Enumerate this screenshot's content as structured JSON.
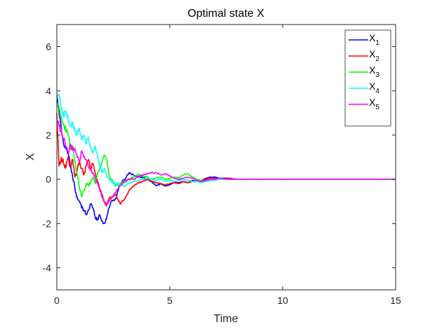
{
  "chart_data": {
    "type": "line",
    "title": "Optimal state X",
    "xlabel": "Time",
    "ylabel": "X",
    "xlim": [
      0,
      15
    ],
    "ylim": [
      -5,
      7
    ],
    "xticks": [
      0,
      5,
      10,
      15
    ],
    "yticks": [
      -4,
      -2,
      0,
      2,
      4,
      6
    ],
    "grid": false,
    "legend_position": "top-right",
    "series": [
      {
        "name": "X1",
        "legend_base": "X",
        "legend_sub": "1",
        "color": "#0000ff",
        "x": [
          0,
          0.1,
          0.2,
          0.3,
          0.4,
          0.5,
          0.6,
          0.7,
          0.8,
          0.9,
          1.0,
          1.1,
          1.2,
          1.3,
          1.4,
          1.5,
          1.6,
          1.7,
          1.8,
          1.9,
          2.0,
          2.1,
          2.2,
          2.3,
          2.4,
          2.6,
          2.8,
          3.0,
          3.2,
          3.4,
          3.6,
          3.8,
          4.0,
          4.2,
          4.4,
          4.6,
          4.8,
          5.0,
          5.2,
          5.4,
          5.6,
          5.8,
          6.0,
          6.2,
          6.4,
          6.6,
          6.8,
          7.0,
          7.2,
          7.6,
          8.0,
          8.5,
          9.0,
          10,
          12,
          15
        ],
        "y": [
          3.8,
          3.0,
          2.3,
          1.6,
          1.4,
          1.2,
          0.6,
          0.1,
          -0.4,
          -0.8,
          -1.0,
          -1.3,
          -1.4,
          -1.6,
          -1.4,
          -1.1,
          -1.3,
          -1.7,
          -1.8,
          -1.6,
          -1.9,
          -2.0,
          -1.8,
          -1.3,
          -1.0,
          -0.9,
          -0.2,
          0.0,
          0.3,
          0.2,
          0.1,
          0.1,
          0.0,
          -0.1,
          -0.3,
          -0.2,
          -0.3,
          -0.25,
          -0.15,
          -0.15,
          -0.1,
          -0.15,
          -0.05,
          -0.1,
          -0.05,
          0.05,
          0.1,
          0.1,
          0.05,
          0.05,
          0.0,
          0.0,
          0.0,
          0.0,
          0.0,
          0.0
        ]
      },
      {
        "name": "X2",
        "legend_base": "X",
        "legend_sub": "2",
        "color": "#ff0000",
        "x": [
          0,
          0.1,
          0.2,
          0.3,
          0.4,
          0.5,
          0.6,
          0.7,
          0.8,
          0.9,
          1.0,
          1.1,
          1.2,
          1.3,
          1.4,
          1.5,
          1.6,
          1.7,
          1.8,
          1.9,
          2.0,
          2.1,
          2.2,
          2.3,
          2.4,
          2.6,
          2.8,
          3.0,
          3.2,
          3.4,
          3.6,
          3.8,
          4.0,
          4.2,
          4.4,
          4.6,
          4.8,
          5.0,
          5.2,
          5.4,
          5.6,
          5.8,
          6.0,
          6.2,
          6.4,
          6.6,
          6.8,
          7.0,
          7.2,
          7.6,
          8.0,
          8.5,
          9.0,
          10,
          12,
          15
        ],
        "y": [
          3.0,
          0.6,
          1.0,
          0.7,
          0.5,
          1.0,
          0.6,
          0.9,
          0.1,
          0.4,
          0.8,
          0.5,
          0.2,
          0.6,
          0.9,
          0.5,
          0.7,
          0.3,
          -0.1,
          -0.4,
          -0.7,
          -1.0,
          -1.2,
          -0.9,
          -0.8,
          -0.7,
          -1.1,
          -0.9,
          -0.5,
          -0.3,
          -0.15,
          -0.1,
          0.0,
          -0.1,
          -0.15,
          -0.2,
          -0.25,
          -0.2,
          -0.15,
          -0.2,
          -0.1,
          -0.15,
          -0.1,
          -0.1,
          -0.05,
          0.0,
          0.05,
          0.05,
          0.0,
          0.05,
          0.0,
          0.0,
          0.0,
          0.0,
          0.0,
          0.0
        ]
      },
      {
        "name": "X3",
        "legend_base": "X",
        "legend_sub": "3",
        "color": "#00ff00",
        "x": [
          0,
          0.1,
          0.2,
          0.3,
          0.4,
          0.5,
          0.6,
          0.7,
          0.8,
          0.9,
          1.0,
          1.1,
          1.2,
          1.3,
          1.4,
          1.5,
          1.6,
          1.7,
          1.8,
          1.9,
          2.0,
          2.1,
          2.2,
          2.3,
          2.4,
          2.6,
          2.8,
          3.0,
          3.2,
          3.4,
          3.6,
          3.8,
          4.0,
          4.2,
          4.4,
          4.6,
          4.8,
          5.0,
          5.2,
          5.4,
          5.6,
          5.8,
          6.0,
          6.2,
          6.4,
          6.6,
          6.8,
          7.0,
          7.2,
          7.6,
          8.0,
          8.5,
          9.0,
          10,
          12,
          15
        ],
        "y": [
          3.5,
          3.2,
          2.8,
          2.5,
          2.2,
          2.0,
          1.4,
          1.5,
          0.8,
          0.2,
          -0.4,
          -0.8,
          -0.5,
          -0.2,
          -0.3,
          -0.1,
          0.1,
          -0.2,
          0.3,
          0.5,
          0.8,
          1.1,
          0.9,
          0.3,
          0.0,
          -0.3,
          -0.2,
          -0.1,
          0.0,
          0.1,
          0.2,
          0.15,
          0.1,
          0.0,
          0.05,
          0.1,
          0.0,
          0.05,
          0.1,
          0.05,
          0.2,
          0.25,
          0.1,
          0.0,
          -0.05,
          -0.1,
          -0.05,
          0.0,
          0.0,
          0.0,
          0.0,
          0.0,
          0.0,
          0.0,
          0.0,
          0.0
        ]
      },
      {
        "name": "X4",
        "legend_base": "X",
        "legend_sub": "4",
        "color": "#00ffff",
        "x": [
          0,
          0.1,
          0.2,
          0.3,
          0.4,
          0.5,
          0.6,
          0.7,
          0.8,
          0.9,
          1.0,
          1.1,
          1.2,
          1.3,
          1.4,
          1.5,
          1.6,
          1.7,
          1.8,
          1.9,
          2.0,
          2.1,
          2.2,
          2.3,
          2.4,
          2.6,
          2.8,
          3.0,
          3.2,
          3.4,
          3.6,
          3.8,
          4.0,
          4.2,
          4.4,
          4.6,
          4.8,
          5.0,
          5.2,
          5.4,
          5.6,
          5.8,
          6.0,
          6.2,
          6.4,
          6.6,
          6.8,
          7.0,
          7.2,
          7.6,
          8.0,
          8.5,
          9.0,
          10,
          12,
          15
        ],
        "y": [
          3.6,
          3.8,
          3.2,
          2.9,
          3.1,
          2.7,
          2.4,
          2.6,
          2.2,
          2.0,
          2.3,
          1.8,
          2.0,
          1.6,
          1.9,
          1.4,
          1.2,
          1.5,
          1.1,
          0.6,
          0.3,
          0.5,
          0.2,
          0.0,
          -0.1,
          -0.2,
          -0.25,
          -0.3,
          -0.2,
          -0.1,
          -0.05,
          0.0,
          0.05,
          0.0,
          -0.05,
          0.0,
          -0.1,
          -0.05,
          -0.1,
          -0.05,
          0.0,
          -0.05,
          -0.1,
          -0.1,
          -0.15,
          -0.1,
          -0.05,
          -0.05,
          0.0,
          0.0,
          0.0,
          0.0,
          0.0,
          0.0,
          0.0,
          0.0
        ]
      },
      {
        "name": "X5",
        "legend_base": "X",
        "legend_sub": "5",
        "color": "#ff00ff",
        "x": [
          0,
          0.1,
          0.2,
          0.3,
          0.4,
          0.5,
          0.6,
          0.7,
          0.8,
          0.9,
          1.0,
          1.1,
          1.2,
          1.3,
          1.4,
          1.5,
          1.6,
          1.7,
          1.8,
          1.9,
          2.0,
          2.1,
          2.2,
          2.3,
          2.4,
          2.6,
          2.8,
          3.0,
          3.2,
          3.4,
          3.6,
          3.8,
          4.0,
          4.2,
          4.4,
          4.6,
          4.8,
          5.0,
          5.2,
          5.4,
          5.6,
          5.8,
          6.0,
          6.2,
          6.4,
          6.6,
          6.8,
          7.0,
          7.2,
          7.6,
          8.0,
          8.5,
          9.0,
          10,
          12,
          15
        ],
        "y": [
          2.8,
          2.4,
          2.2,
          1.8,
          1.5,
          1.2,
          1.6,
          1.3,
          1.4,
          1.0,
          0.8,
          1.3,
          1.0,
          0.9,
          0.6,
          0.4,
          0.3,
          0.1,
          -0.2,
          -0.5,
          -0.8,
          -1.0,
          -1.1,
          -1.0,
          -0.9,
          -0.6,
          -0.3,
          -0.1,
          0.0,
          0.0,
          0.1,
          0.2,
          0.25,
          0.3,
          0.3,
          0.2,
          0.25,
          0.15,
          0.05,
          0.0,
          0.05,
          0.1,
          0.05,
          -0.05,
          -0.1,
          -0.05,
          0.0,
          0.0,
          0.05,
          0.0,
          0.0,
          0.0,
          0.0,
          0.0,
          0.0,
          0.0
        ]
      }
    ]
  }
}
